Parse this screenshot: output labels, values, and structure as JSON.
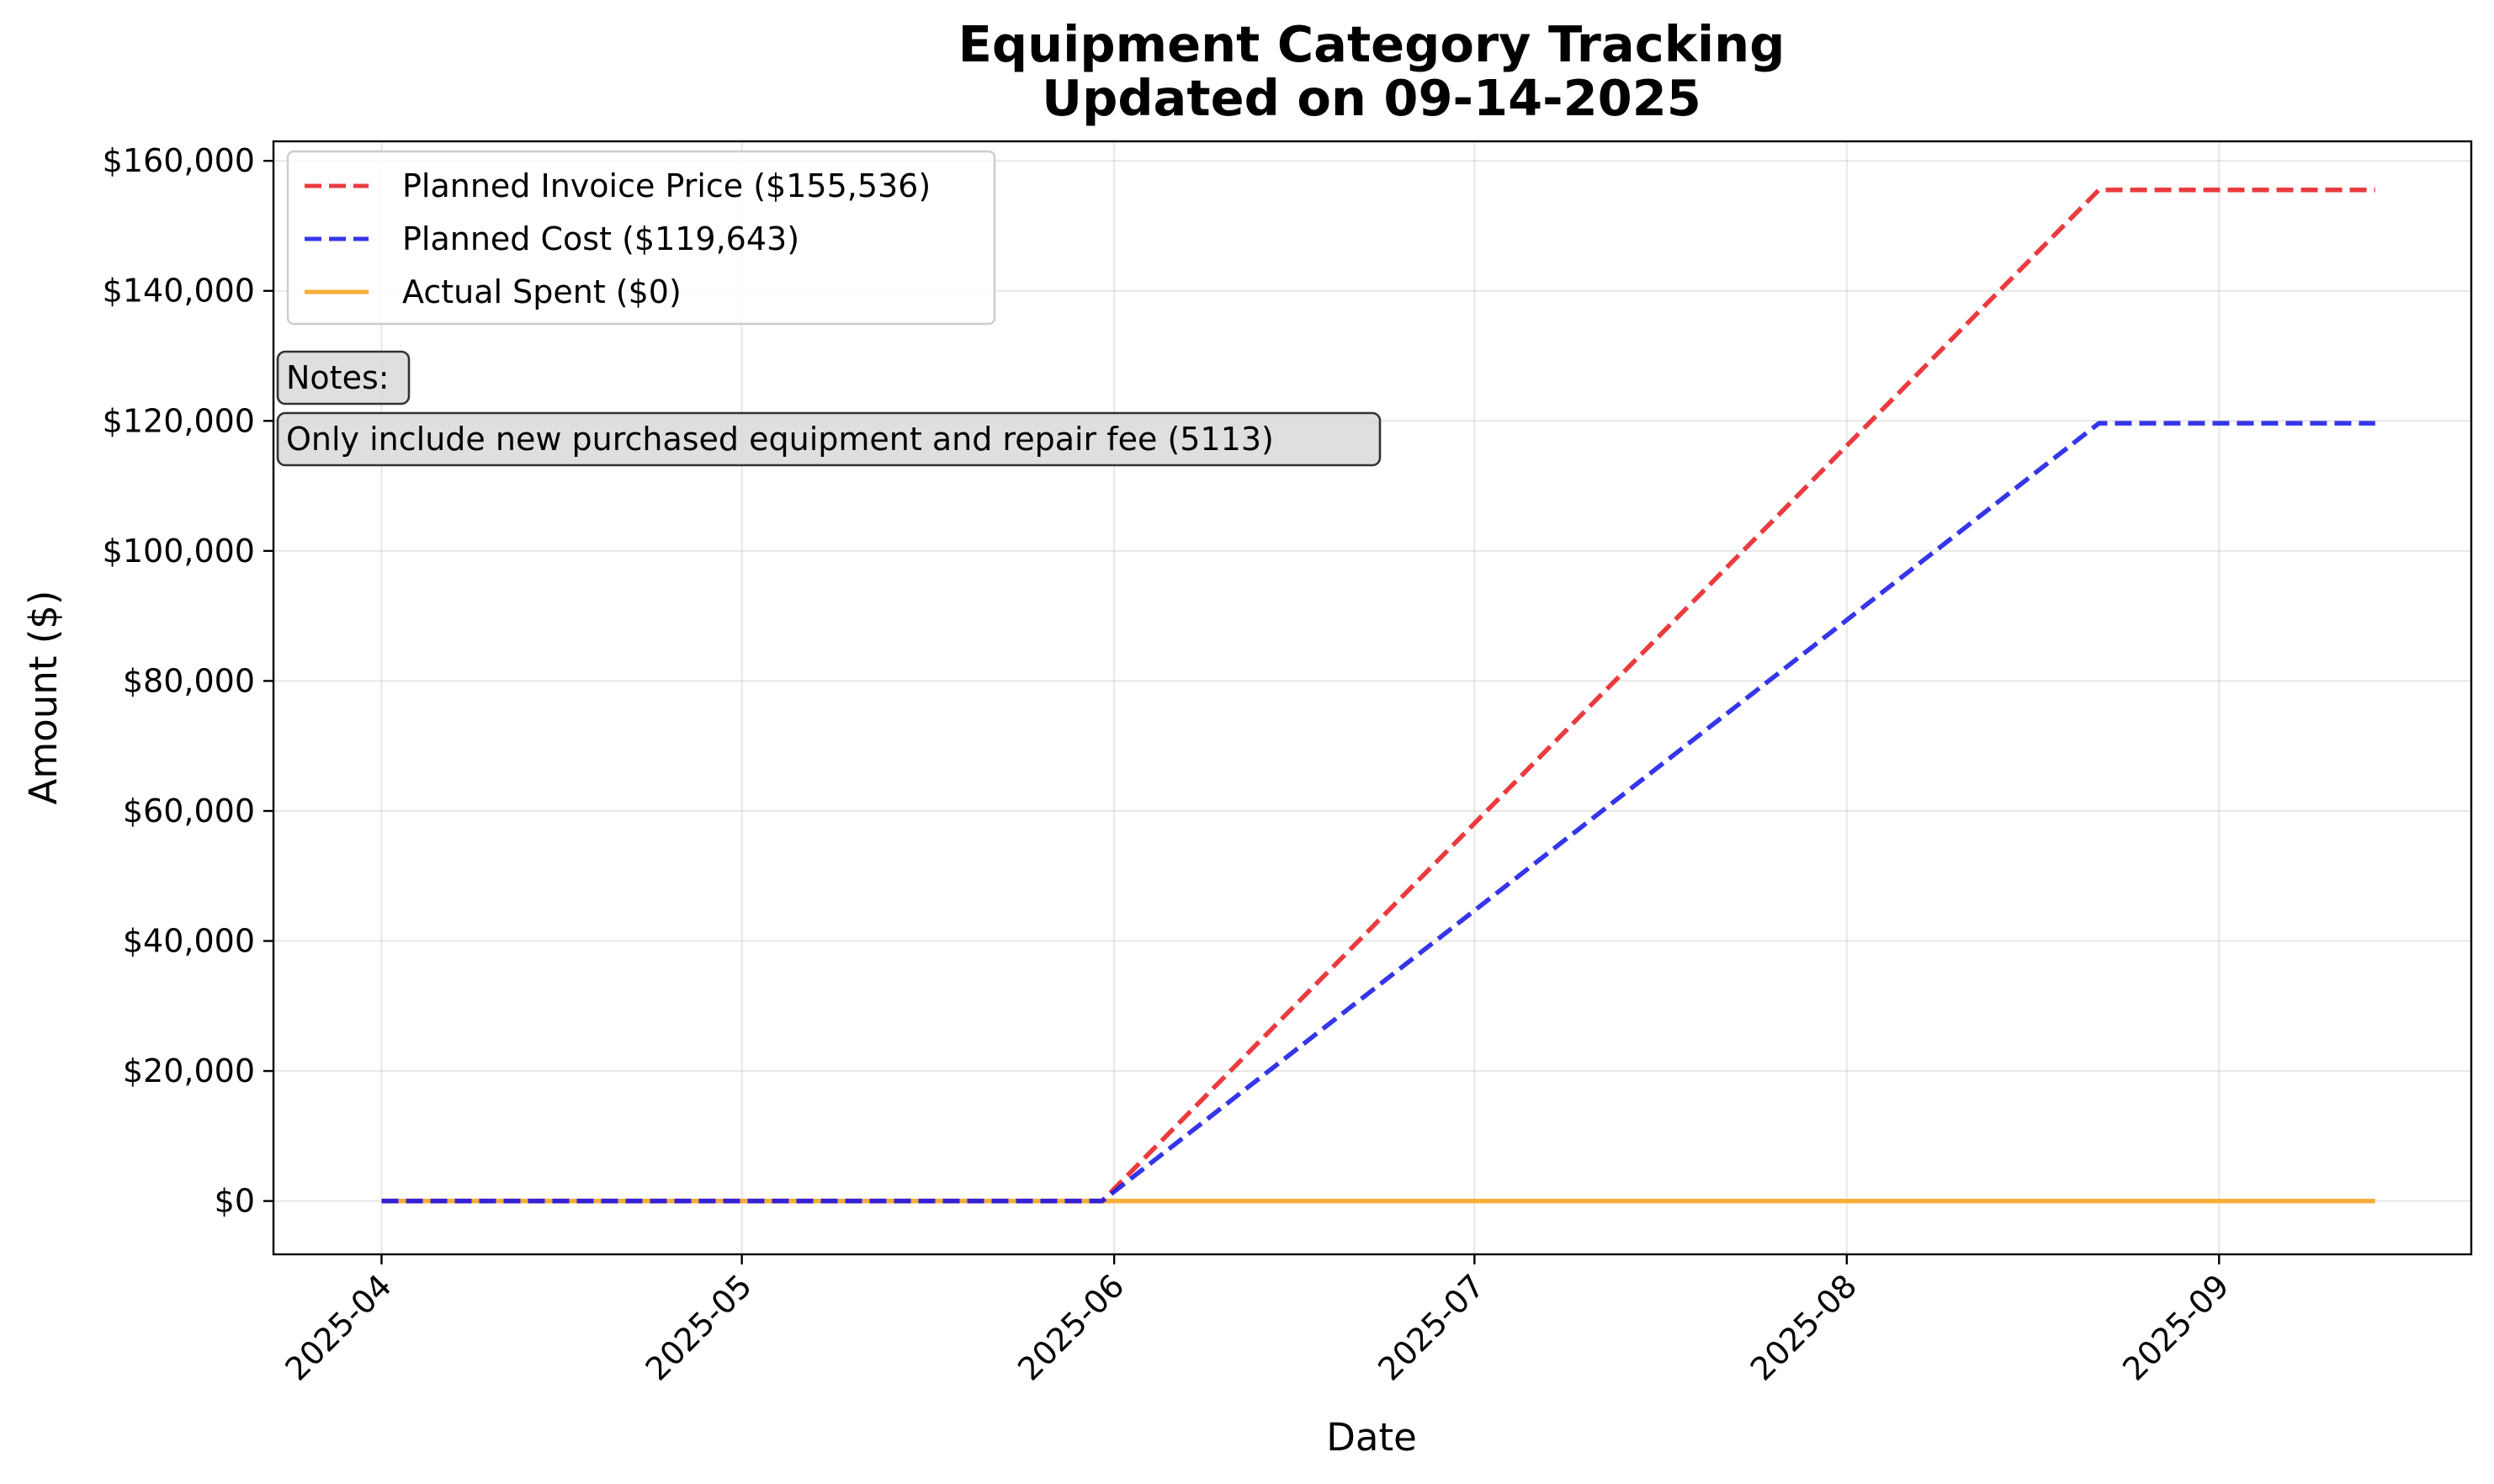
{
  "chart_data": {
    "type": "line",
    "title": "Equipment Category Tracking",
    "subtitle": "Updated on 09-14-2025",
    "xlabel": "Date",
    "ylabel": "Amount ($)",
    "xlim": [
      "2025-03-23",
      "2025-09-22"
    ],
    "ylim": [
      -8200,
      163000
    ],
    "grid": true,
    "legend_position": "upper left",
    "x_ticks": [
      "2025-04-01",
      "2025-05-01",
      "2025-06-01",
      "2025-07-01",
      "2025-08-01",
      "2025-09-01"
    ],
    "x_tick_labels": [
      "2025-04",
      "2025-05",
      "2025-06",
      "2025-07",
      "2025-08",
      "2025-09"
    ],
    "y_ticks": [
      0,
      20000,
      40000,
      60000,
      80000,
      100000,
      120000,
      140000,
      160000
    ],
    "y_tick_labels": [
      "$0",
      "$20,000",
      "$40,000",
      "$60,000",
      "$80,000",
      "$100,000",
      "$120,000",
      "$140,000",
      "$160,000"
    ],
    "series": [
      {
        "name": "Planned Invoice Price ($155,536)",
        "color": "#e8262a",
        "style": "dashed",
        "points": [
          {
            "x": "2025-04-01",
            "y": 0
          },
          {
            "x": "2025-05-31",
            "y": 0
          },
          {
            "x": "2025-08-22",
            "y": 155536
          },
          {
            "x": "2025-09-14",
            "y": 155536
          }
        ]
      },
      {
        "name": "Planned Cost ($119,643)",
        "color": "#1f1fe8",
        "style": "dashed",
        "points": [
          {
            "x": "2025-04-01",
            "y": 0
          },
          {
            "x": "2025-05-31",
            "y": 0
          },
          {
            "x": "2025-08-22",
            "y": 119643
          },
          {
            "x": "2025-09-14",
            "y": 119643
          }
        ]
      },
      {
        "name": "Actual Spent ($0)",
        "color": "#f5a623",
        "style": "solid",
        "points": [
          {
            "x": "2025-04-01",
            "y": 0
          },
          {
            "x": "2025-09-14",
            "y": 0
          }
        ]
      }
    ],
    "annotations": [
      {
        "text": "Notes:"
      },
      {
        "text": "Only include new purchased equipment and repair fee (5113)"
      }
    ]
  }
}
